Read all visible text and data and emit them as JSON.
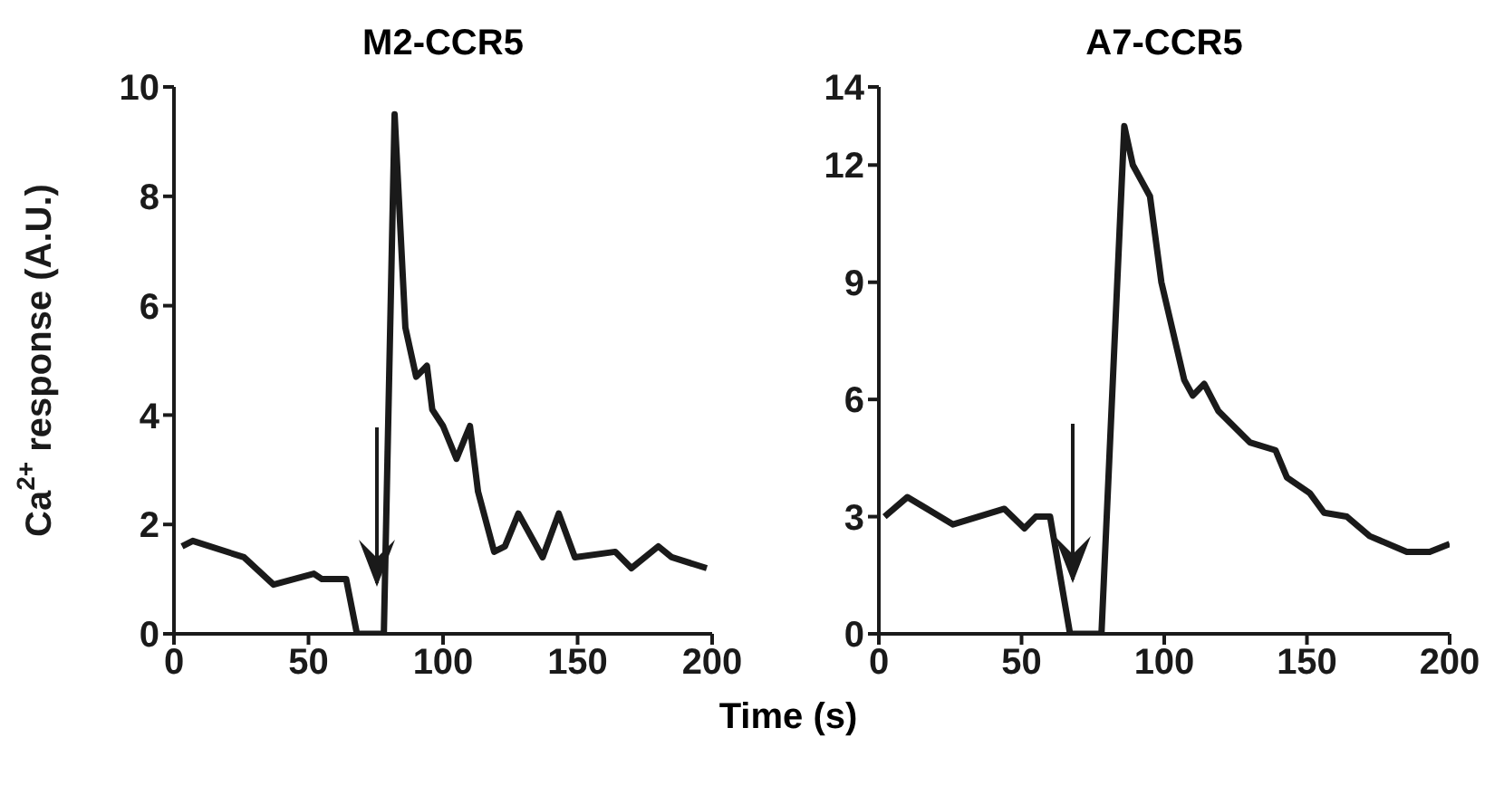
{
  "chart_data": [
    {
      "type": "line",
      "title": "M2-CCR5",
      "xlabel": "Time (s)",
      "ylabel": "Ca$^{2+}$ response (A.U.)",
      "x": [
        3,
        7,
        26,
        37,
        52,
        55,
        64,
        68,
        78,
        82,
        86,
        90,
        94,
        96,
        100,
        105,
        110,
        113,
        119,
        123,
        128,
        137,
        143,
        149,
        164,
        170,
        180,
        185,
        198
      ],
      "series": [
        {
          "color": "#1a1a1a",
          "values": [
            1.6,
            1.7,
            1.4,
            0.9,
            1.1,
            1.0,
            1.0,
            0,
            0,
            9.5,
            5.6,
            4.7,
            4.9,
            4.1,
            3.8,
            3.2,
            3.8,
            2.6,
            1.5,
            1.6,
            2.2,
            1.4,
            2.2,
            1.4,
            1.5,
            1.2,
            1.6,
            1.4,
            1.2
          ]
        }
      ],
      "xlim": [
        0,
        200
      ],
      "xticks": [
        0,
        50,
        100,
        150,
        200
      ],
      "ylim": [
        0,
        10
      ],
      "yticks": [
        0,
        2,
        4,
        6,
        8,
        10
      ],
      "grid": false
    },
    {
      "type": "line",
      "title": "A7-CCR5",
      "x": [
        2,
        10,
        26,
        44,
        51,
        55,
        60,
        67,
        78,
        86,
        89,
        95,
        99,
        107,
        110,
        114,
        119,
        130,
        139,
        143,
        151,
        156,
        164,
        172,
        185,
        193,
        200
      ],
      "series": [
        {
          "color": "#1a1a1a",
          "values": [
            3.0,
            3.5,
            2.8,
            3.2,
            2.7,
            3.0,
            3.0,
            0,
            0,
            13,
            12,
            11.2,
            9,
            6.5,
            6.1,
            6.4,
            5.7,
            4.9,
            4.7,
            4.0,
            3.6,
            3.1,
            3.0,
            2.5,
            2.1,
            2.1,
            2.3
          ]
        }
      ],
      "xlim": [
        0,
        200
      ],
      "xticks": [
        0,
        50,
        100,
        150,
        200
      ],
      "ylim": [
        0,
        14
      ],
      "yticks": [
        0,
        3,
        6,
        9,
        12,
        14
      ],
      "grid": false
    }
  ]
}
